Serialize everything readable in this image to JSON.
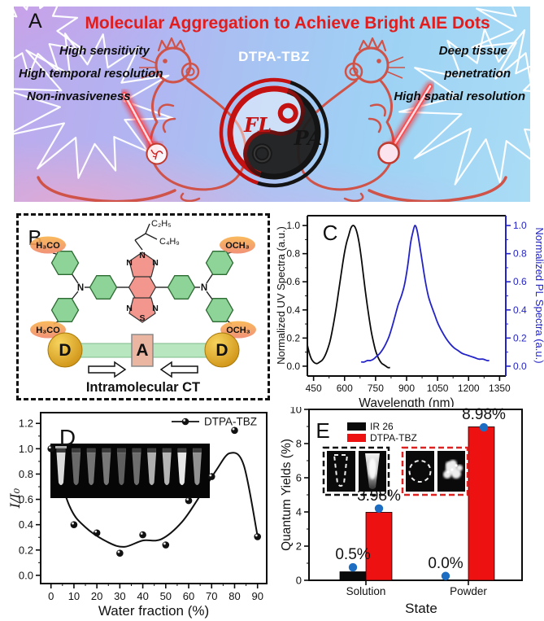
{
  "panel_a": {
    "label": "A",
    "title": "Molecular Aggregation to Achieve Bright AIE Dots",
    "molecule_name": "DTPA-TBZ",
    "left_annotations": [
      "High sensitivity",
      "High temporal resolution",
      "Non-invasiveness"
    ],
    "right_annotations": [
      "Deep tissue",
      "penetration",
      "High spatial resolution"
    ],
    "yinyang": {
      "fl": "FL",
      "pa": "PA"
    },
    "colors": {
      "title": "#e11d1d",
      "mouse_line": "#cf5348",
      "fl": "#c41111",
      "pa": "#141414"
    }
  },
  "panel_b": {
    "label": "B",
    "substituents": {
      "h3co": "H₃CO",
      "och3": "OCH₃",
      "c2h5": "C₂H₅",
      "c4h9": "C₄H₉"
    },
    "atoms": {
      "n": "N",
      "s": "S"
    },
    "dad": {
      "d": "D",
      "a": "A"
    },
    "caption": "Intramolecular CT"
  },
  "chart_data": [
    {
      "id": "C",
      "panel_label": "C",
      "type": "line",
      "xlabel": "Wavelength (nm)",
      "ylabel_left": "Normalized UV Spectra (a.u.)",
      "ylabel_right": "Normalized PL Spectra (a.u.)",
      "xlim": [
        420,
        1380
      ],
      "ylim": [
        -0.07,
        1.07
      ],
      "xticks": [
        450,
        600,
        750,
        900,
        1050,
        1200,
        1350
      ],
      "yticks": [
        0.0,
        0.2,
        0.4,
        0.6,
        0.8,
        1.0
      ],
      "legend_position": "none",
      "grid": false,
      "series": [
        {
          "name": "UV absorption",
          "color": "#0a0a0a",
          "axis": "left",
          "x": [
            420,
            430,
            440,
            450,
            460,
            470,
            480,
            490,
            500,
            510,
            520,
            530,
            540,
            550,
            560,
            570,
            580,
            590,
            600,
            610,
            620,
            630,
            640,
            650,
            660,
            670,
            680,
            690,
            700,
            710,
            720,
            730,
            740,
            750,
            760,
            770,
            780,
            790,
            800,
            810,
            820
          ],
          "y": [
            0.15,
            0.09,
            0.05,
            0.03,
            0.02,
            0.02,
            0.03,
            0.04,
            0.06,
            0.09,
            0.13,
            0.18,
            0.25,
            0.33,
            0.42,
            0.52,
            0.62,
            0.72,
            0.81,
            0.88,
            0.93,
            0.98,
            1.0,
            0.99,
            0.95,
            0.88,
            0.78,
            0.66,
            0.54,
            0.43,
            0.33,
            0.24,
            0.17,
            0.11,
            0.07,
            0.04,
            0.02,
            0.01,
            0.0,
            -0.01,
            -0.01
          ]
        },
        {
          "name": "PL emission",
          "color": "#2323c8",
          "axis": "right",
          "x": [
            680,
            695,
            710,
            725,
            740,
            755,
            770,
            785,
            800,
            815,
            830,
            845,
            860,
            875,
            890,
            905,
            920,
            930,
            940,
            950,
            960,
            975,
            990,
            1005,
            1020,
            1035,
            1050,
            1070,
            1090,
            1110,
            1130,
            1150,
            1170,
            1190,
            1210,
            1230,
            1250,
            1270,
            1290,
            1300
          ],
          "y": [
            0.03,
            0.03,
            0.04,
            0.04,
            0.05,
            0.07,
            0.09,
            0.12,
            0.16,
            0.21,
            0.28,
            0.36,
            0.44,
            0.5,
            0.58,
            0.71,
            0.88,
            0.95,
            1.0,
            0.97,
            0.89,
            0.75,
            0.61,
            0.5,
            0.43,
            0.37,
            0.31,
            0.25,
            0.2,
            0.16,
            0.13,
            0.11,
            0.09,
            0.08,
            0.07,
            0.06,
            0.05,
            0.05,
            0.04,
            0.04
          ]
        }
      ]
    },
    {
      "id": "D",
      "panel_label": "D",
      "type": "scatter+spline",
      "legend": "DTPA-TBZ",
      "xlabel": "Water fraction (%)",
      "ylabel": "I/I₀",
      "xticks": [
        0,
        10,
        20,
        30,
        40,
        50,
        60,
        70,
        80,
        90
      ],
      "yticks": [
        0.0,
        0.2,
        0.4,
        0.6,
        0.8,
        1.0,
        1.2
      ],
      "xlim": [
        -4.5,
        94
      ],
      "ylim": [
        -0.065,
        1.285
      ],
      "points": {
        "x": [
          0,
          10,
          20,
          30,
          40,
          50,
          60,
          70,
          80,
          90
        ],
        "y": [
          1.0,
          0.4,
          0.335,
          0.175,
          0.32,
          0.24,
          0.59,
          0.78,
          1.145,
          0.305
        ]
      },
      "curve": [
        [
          0,
          1.0
        ],
        [
          8,
          0.55
        ],
        [
          15,
          0.38
        ],
        [
          25,
          0.26
        ],
        [
          32,
          0.225
        ],
        [
          40,
          0.275
        ],
        [
          48,
          0.285
        ],
        [
          57,
          0.42
        ],
        [
          65,
          0.63
        ],
        [
          72,
          0.83
        ],
        [
          78,
          0.965
        ],
        [
          84,
          0.87
        ],
        [
          90,
          0.31
        ]
      ],
      "marker_color": "#111111",
      "inset_tube_brightness": [
        0.95,
        0.38,
        0.42,
        0.45,
        0.33,
        0.4,
        0.72,
        0.75,
        1.0,
        0.58
      ]
    },
    {
      "id": "E",
      "panel_label": "E",
      "type": "bar",
      "xlabel": "State",
      "ylabel": "Quantum Yields (%)",
      "categories": [
        "Solution",
        "Powder"
      ],
      "series": [
        {
          "name": "IR 26",
          "color": "#0a0a0a",
          "values": [
            0.5,
            0.0
          ]
        },
        {
          "name": "DTPA-TBZ",
          "color": "#ee1111",
          "values": [
            3.98,
            8.98
          ]
        }
      ],
      "value_labels": [
        "0.5%",
        "3.98%",
        "0.0%",
        "8.98%"
      ],
      "dot_values": [
        0.76,
        4.2,
        0.25,
        8.95
      ],
      "dot_color": "#1d6ec2",
      "ylim": [
        0,
        10
      ],
      "yticks": [
        0,
        2,
        4,
        6,
        8,
        10
      ],
      "legend_position": "top-left-inside",
      "inset_box_colors": {
        "solution": "#111111",
        "powder": "#dd2222"
      }
    }
  ]
}
